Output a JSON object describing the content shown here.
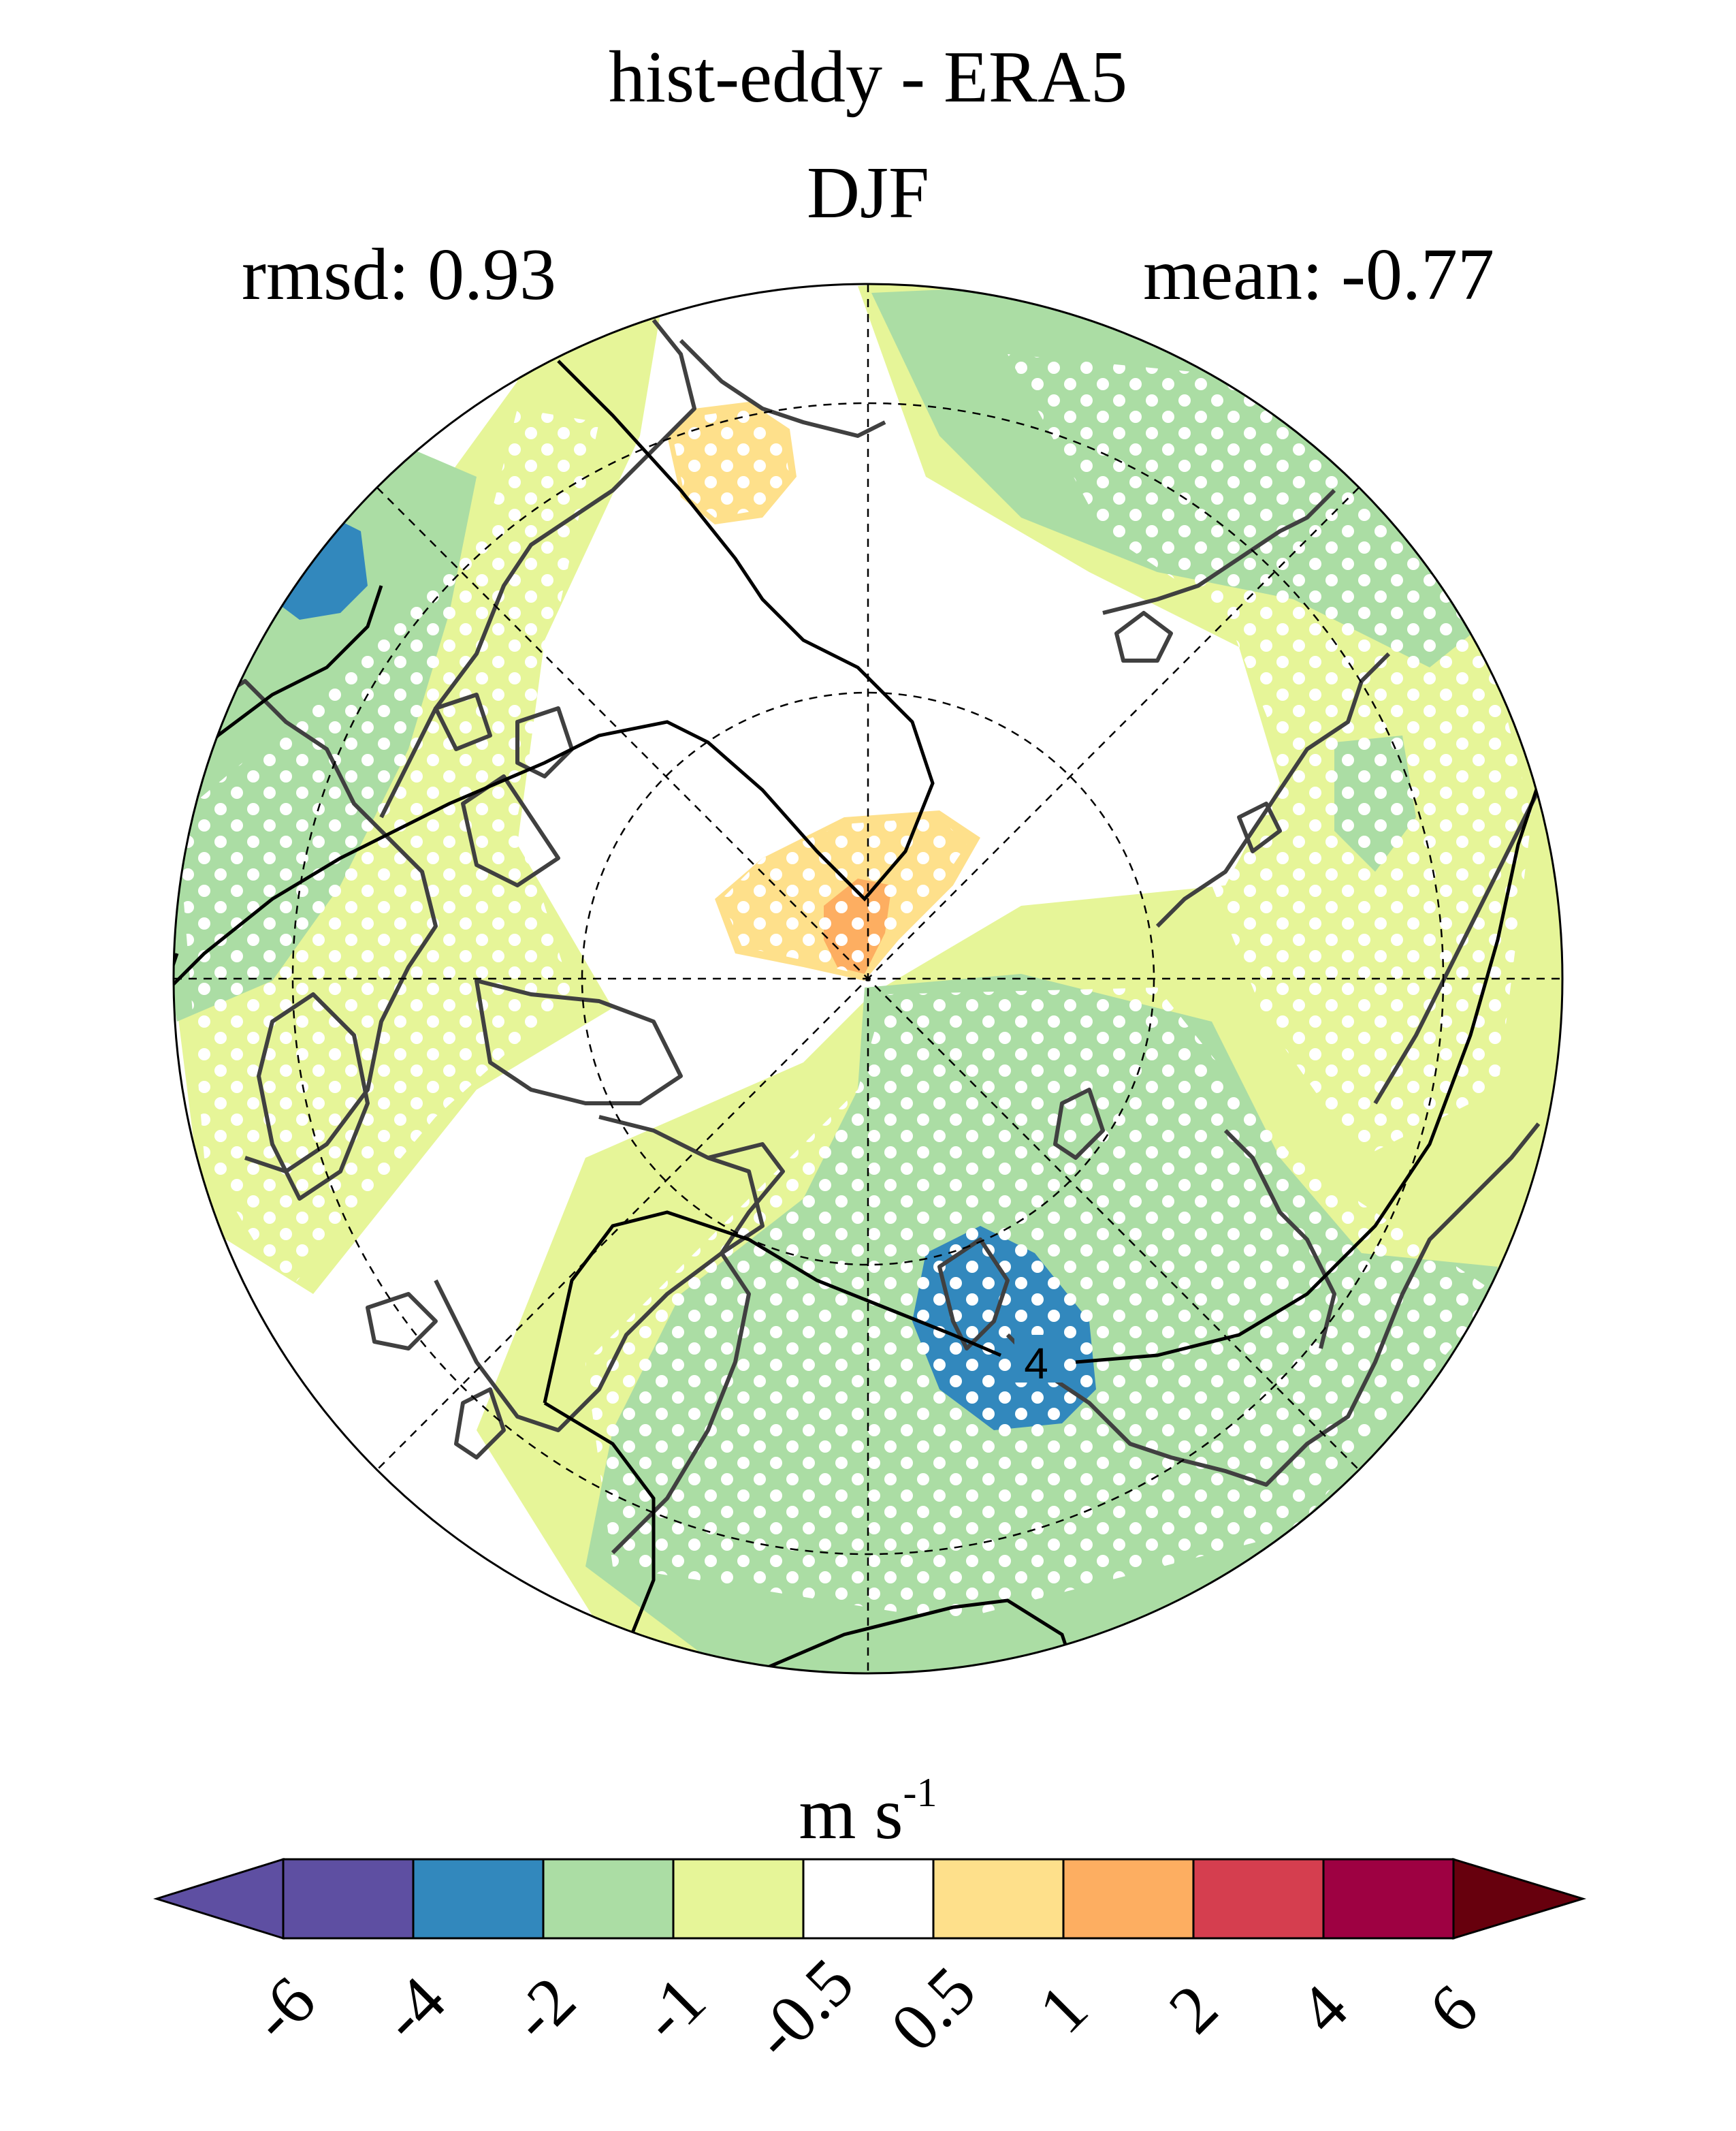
{
  "title": "hist-eddy - ERA5",
  "season": "DJF",
  "stats": {
    "rmsd_label": "rmsd: 0.93",
    "mean_label": "mean: -0.77"
  },
  "map": {
    "projection": "north-polar-stereographic",
    "contour_label": "4",
    "colors": {
      "land_outline": "#404040",
      "grid": "#000000",
      "stipple": "#ffffff"
    }
  },
  "colorbar": {
    "units": "m s",
    "units_exponent": "-1",
    "ticks": [
      "-6",
      "-4",
      "-2",
      "-1",
      "-0.5",
      "0.5",
      "1",
      "2",
      "4",
      "6"
    ],
    "colors": [
      "#5e4fa2",
      "#5e4fa2",
      "#3288bd",
      "#abdda4",
      "#e6f598",
      "#ffffff",
      "#fee08b",
      "#fdae61",
      "#d53e4f",
      "#9e0142",
      "#67000d"
    ]
  }
}
